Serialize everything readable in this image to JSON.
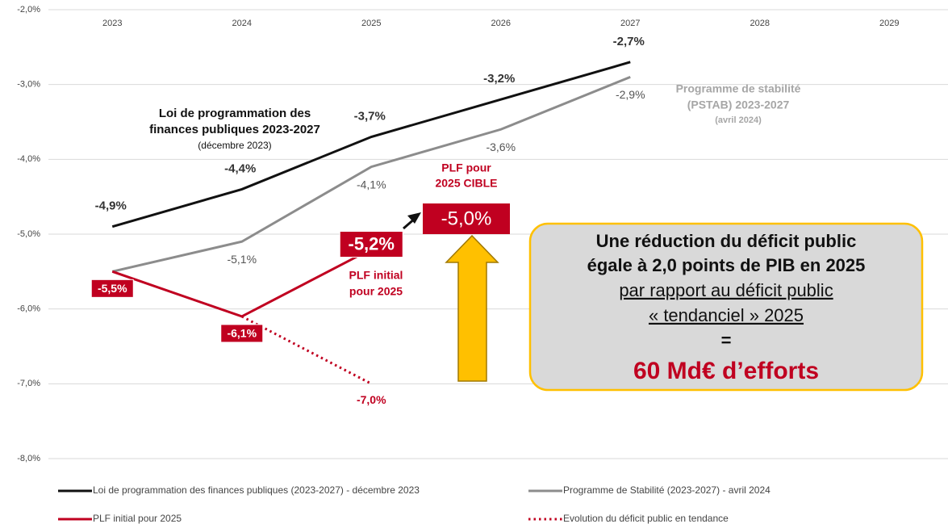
{
  "chart_data": {
    "type": "line",
    "categories": [
      "2023",
      "2024",
      "2025",
      "2026",
      "2027",
      "2028",
      "2029"
    ],
    "ylim": [
      -8,
      -2
    ],
    "yticks": [
      {
        "value": -2,
        "label": "-2,0%"
      },
      {
        "value": -3,
        "label": "-3,0%"
      },
      {
        "value": -4,
        "label": "-4,0%"
      },
      {
        "value": -5,
        "label": "-5,0%"
      },
      {
        "value": -6,
        "label": "-6,0%"
      },
      {
        "value": -7,
        "label": "-7,0%"
      },
      {
        "value": -8,
        "label": "-8,0%"
      }
    ],
    "grid": true,
    "series": [
      {
        "name": "Loi de programmation des finances publiques (2023-2027) - décembre 2023",
        "color": "#111111",
        "style": "solid",
        "values": [
          -4.9,
          -4.4,
          -3.7,
          -3.2,
          -2.7,
          null,
          null
        ],
        "value_labels": [
          "-4,9%",
          "-4,4%",
          "-3,7%",
          "-3,2%",
          "-2,7%",
          null,
          null
        ]
      },
      {
        "name": "Programme de Stabilité (2023-2027) - avril 2024",
        "color": "#8c8c8c",
        "style": "solid",
        "values": [
          -5.5,
          -5.1,
          -4.1,
          -3.6,
          -2.9,
          null,
          null
        ],
        "value_labels": [
          null,
          "-5,1%",
          "-4,1%",
          "-3,6%",
          "-2,9%",
          null,
          null
        ]
      },
      {
        "name": "PLF initial pour 2025",
        "color": "#c00020",
        "style": "solid",
        "values": [
          -5.5,
          -6.1,
          -5.2,
          null,
          null,
          null,
          null
        ],
        "value_labels": [
          "-5,5%",
          "-6,1%",
          "-5,2%",
          null,
          null,
          null,
          null
        ]
      },
      {
        "name": "Evolution du déficit public en tendance",
        "color": "#c00020",
        "style": "dotted",
        "values": [
          null,
          -6.1,
          -7.0,
          null,
          null,
          null,
          null
        ],
        "value_labels": [
          null,
          null,
          "-7,0%",
          null,
          null,
          null,
          null
        ]
      }
    ],
    "target": {
      "value": -5.0,
      "label": "-5,0%",
      "text": [
        "PLF pour",
        "2025 CIBLE"
      ]
    },
    "annotations": {
      "lpfp": [
        "Loi de programmation des",
        "finances publiques 2023-2027",
        "(décembre 2023)"
      ],
      "pstab": [
        "Programme de stabilité",
        "(PSTAB) 2023-2027",
        "(avril 2024)"
      ],
      "plf": [
        "PLF initial",
        "pour 2025"
      ]
    },
    "box": [
      "Une réduction du déficit public",
      "égale à 2,0 points de PIB en 2025",
      "par rapport au déficit public",
      "« tendanciel » 2025",
      "=",
      "60 Md€ d’efforts"
    ],
    "legend": "bottom"
  }
}
